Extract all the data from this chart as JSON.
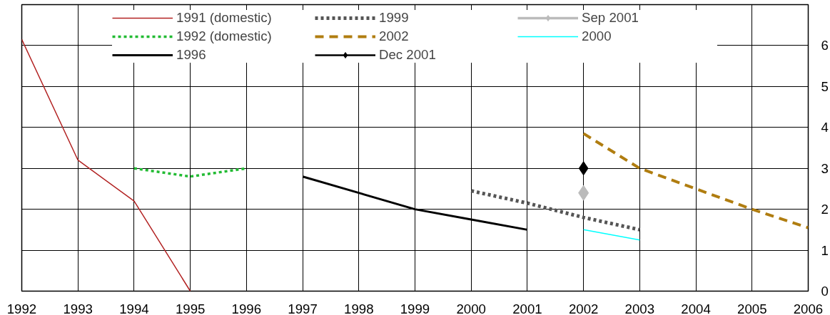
{
  "chart_data": {
    "type": "line",
    "xlim": [
      1992,
      2006
    ],
    "xticks": [
      1992,
      1993,
      1994,
      1995,
      1996,
      1997,
      1998,
      1999,
      2000,
      2001,
      2002,
      2003,
      2004,
      2005,
      2006
    ],
    "ylim": [
      0,
      7
    ],
    "yticks": [
      0,
      1,
      2,
      3,
      4,
      5,
      6
    ],
    "grid": true,
    "legend": "top",
    "series": [
      {
        "name": "1991 (domestic)",
        "color": "#b22222",
        "line_style": "solid",
        "marker": "none",
        "x": [
          1992,
          1993,
          1994,
          1995
        ],
        "values": [
          6.15,
          3.2,
          2.2,
          0
        ]
      },
      {
        "name": "1992 (domestic)",
        "color": "#22bb33",
        "line_style": "dotted",
        "marker": "none",
        "x": [
          1994,
          1995,
          1996
        ],
        "values": [
          3.0,
          2.8,
          3.0
        ]
      },
      {
        "name": "1996",
        "color": "#000000",
        "line_style": "solid",
        "marker": "none",
        "x": [
          1997,
          1998,
          1999,
          2000,
          2001
        ],
        "values": [
          2.8,
          2.4,
          2.0,
          1.75,
          1.5
        ]
      },
      {
        "name": "1999",
        "color": "#555555",
        "line_style": "dotted",
        "marker": "none",
        "x": [
          2000,
          2001,
          2002,
          2003
        ],
        "values": [
          2.45,
          2.15,
          1.8,
          1.5
        ]
      },
      {
        "name": "2002",
        "color": "#b07d10",
        "line_style": "dashed",
        "marker": "none",
        "x": [
          2002,
          2003,
          2004,
          2005,
          2006
        ],
        "values": [
          3.85,
          3.0,
          2.5,
          2.0,
          1.55
        ]
      },
      {
        "name": "Dec 2001",
        "color": "#000000",
        "line_style": "solid",
        "marker": "diamond",
        "x": [
          2002
        ],
        "values": [
          3.0
        ]
      },
      {
        "name": "Sep 2001",
        "color": "#bbbbbb",
        "line_style": "solid",
        "marker": "diamond",
        "x": [
          2002
        ],
        "values": [
          2.4
        ]
      },
      {
        "name": "2000",
        "color": "#00ffff",
        "line_style": "solid",
        "marker": "none",
        "x": [
          2002,
          2003
        ],
        "values": [
          1.5,
          1.25
        ]
      }
    ]
  }
}
